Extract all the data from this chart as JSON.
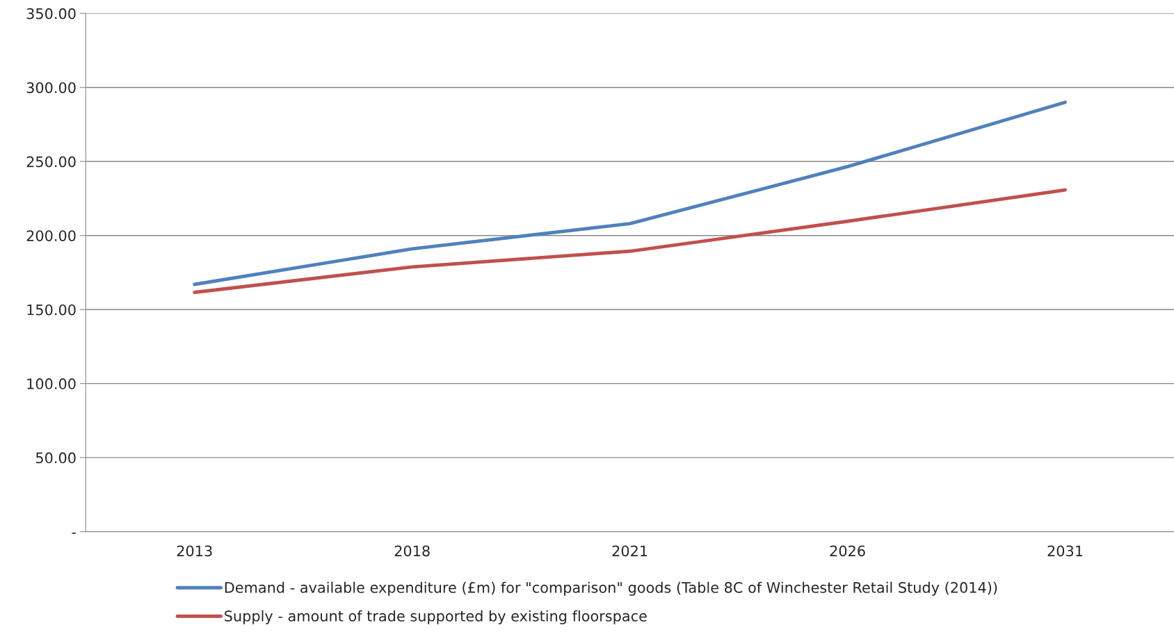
{
  "chart_data": {
    "type": "line",
    "categories": [
      "2013",
      "2018",
      "2021",
      "2026",
      "2031"
    ],
    "series": [
      {
        "name": "Demand - available expenditure (£m) for \"comparison\" goods (Table 8C of Winchester Retail Study (2014))",
        "color": "#4f81bd",
        "values": [
          167,
          191,
          208,
          246.5,
          290
        ]
      },
      {
        "name": "Supply - amount of trade supported by existing floorspace",
        "color": "#c0504d",
        "values": [
          161.6,
          178.8,
          189.4,
          209.6,
          230.8
        ]
      }
    ],
    "ylim": [
      0,
      350
    ],
    "yticks": [
      {
        "value": 0,
        "label": "-"
      },
      {
        "value": 50,
        "label": "50.00"
      },
      {
        "value": 100,
        "label": "100.00"
      },
      {
        "value": 150,
        "label": "150.00"
      },
      {
        "value": 200,
        "label": "200.00"
      },
      {
        "value": 250,
        "label": "250.00"
      },
      {
        "value": 300,
        "label": "300.00"
      },
      {
        "value": 350,
        "label": "350.00"
      }
    ],
    "grid": "y",
    "legend": "bottom",
    "marker": "none",
    "line_style": "solid"
  }
}
